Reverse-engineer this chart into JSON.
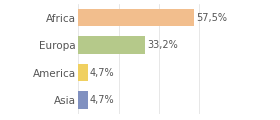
{
  "categories": [
    "Africa",
    "Europa",
    "America",
    "Asia"
  ],
  "values": [
    57.5,
    33.2,
    4.7,
    4.7
  ],
  "labels": [
    "57,5%",
    "33,2%",
    "4,7%",
    "4,7%"
  ],
  "bar_colors": [
    "#f2be8d",
    "#b5c98a",
    "#f0d060",
    "#8090c0"
  ],
  "background_color": "#ffffff",
  "xlim": [
    0,
    75
  ],
  "bar_height": 0.65,
  "label_fontsize": 7,
  "tick_fontsize": 7.5
}
